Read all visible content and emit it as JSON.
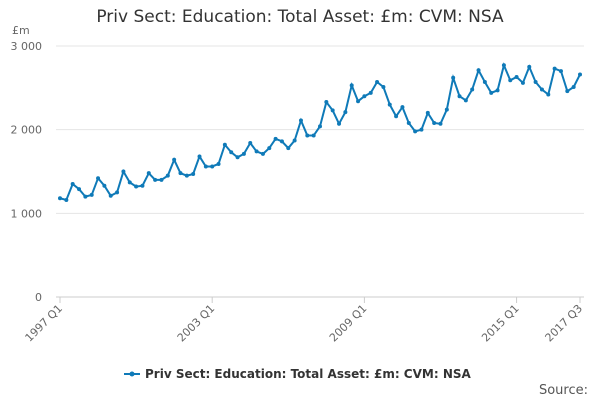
{
  "chart_data": {
    "type": "line",
    "title": "Priv Sect: Education: Total Asset: £m: CVM: NSA",
    "y_label": "£m",
    "source_label": "Source:",
    "categories": [
      "1997 Q1",
      null,
      null,
      null,
      null,
      null,
      null,
      null,
      null,
      null,
      null,
      null,
      null,
      null,
      null,
      null,
      null,
      null,
      null,
      null,
      null,
      null,
      null,
      null,
      "2003 Q1",
      null,
      null,
      null,
      null,
      null,
      null,
      null,
      null,
      null,
      null,
      null,
      null,
      null,
      null,
      null,
      null,
      null,
      null,
      null,
      null,
      null,
      null,
      null,
      "2009 Q1",
      null,
      null,
      null,
      null,
      null,
      null,
      null,
      null,
      null,
      null,
      null,
      null,
      null,
      null,
      null,
      null,
      null,
      null,
      null,
      null,
      null,
      null,
      null,
      "2015 Q1",
      null,
      null,
      null,
      null,
      null,
      null,
      null,
      null,
      null,
      "2017 Q3"
    ],
    "series": [
      {
        "name": "Priv Sect: Education: Total Asset: £m: CVM: NSA",
        "color": "#0f7ab8",
        "values": [
          1180,
          1160,
          1350,
          1290,
          1200,
          1220,
          1420,
          1330,
          1210,
          1250,
          1500,
          1370,
          1320,
          1330,
          1480,
          1400,
          1400,
          1450,
          1640,
          1480,
          1450,
          1470,
          1680,
          1560,
          1560,
          1590,
          1820,
          1730,
          1670,
          1710,
          1840,
          1740,
          1710,
          1780,
          1890,
          1860,
          1780,
          1870,
          2110,
          1930,
          1930,
          2040,
          2330,
          2230,
          2070,
          2210,
          2530,
          2340,
          2400,
          2440,
          2570,
          2510,
          2300,
          2160,
          2270,
          2080,
          1980,
          2000,
          2200,
          2080,
          2070,
          2240,
          2620,
          2400,
          2350,
          2480,
          2710,
          2570,
          2440,
          2470,
          2770,
          2590,
          2630,
          2560,
          2750,
          2570,
          2480,
          2420,
          2730,
          2700,
          2460,
          2510,
          2660
        ]
      }
    ],
    "ylim": [
      0,
      3000
    ],
    "yticks": [
      0,
      {
        "value": 1000,
        "label": "1 000"
      },
      {
        "value": 2000,
        "label": "2 000"
      },
      {
        "value": 3000,
        "label": "3 000"
      }
    ],
    "grid": true,
    "legend": "bottom"
  }
}
